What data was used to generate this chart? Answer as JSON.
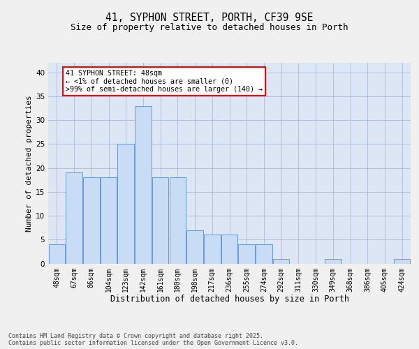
{
  "title_line1": "41, SYPHON STREET, PORTH, CF39 9SE",
  "title_line2": "Size of property relative to detached houses in Porth",
  "xlabel": "Distribution of detached houses by size in Porth",
  "ylabel": "Number of detached properties",
  "categories": [
    "48sqm",
    "67sqm",
    "86sqm",
    "104sqm",
    "123sqm",
    "142sqm",
    "161sqm",
    "180sqm",
    "198sqm",
    "217sqm",
    "236sqm",
    "255sqm",
    "274sqm",
    "292sqm",
    "311sqm",
    "330sqm",
    "349sqm",
    "368sqm",
    "386sqm",
    "405sqm",
    "424sqm"
  ],
  "values": [
    4,
    19,
    18,
    18,
    25,
    33,
    18,
    18,
    7,
    6,
    6,
    4,
    4,
    1,
    0,
    0,
    1,
    0,
    0,
    0,
    1
  ],
  "bar_color": "#c9dcf5",
  "bar_edge_color": "#5b8dd9",
  "annotation_text": "41 SYPHON STREET: 48sqm\n← <1% of detached houses are smaller (0)\n>99% of semi-detached houses are larger (140) →",
  "ylim": [
    0,
    42
  ],
  "yticks": [
    0,
    5,
    10,
    15,
    20,
    25,
    30,
    35,
    40
  ],
  "grid_color": "#aabcd8",
  "bg_color": "#dce6f5",
  "fig_bg": "#f0f0f0",
  "footer": "Contains HM Land Registry data © Crown copyright and database right 2025.\nContains public sector information licensed under the Open Government Licence v3.0."
}
